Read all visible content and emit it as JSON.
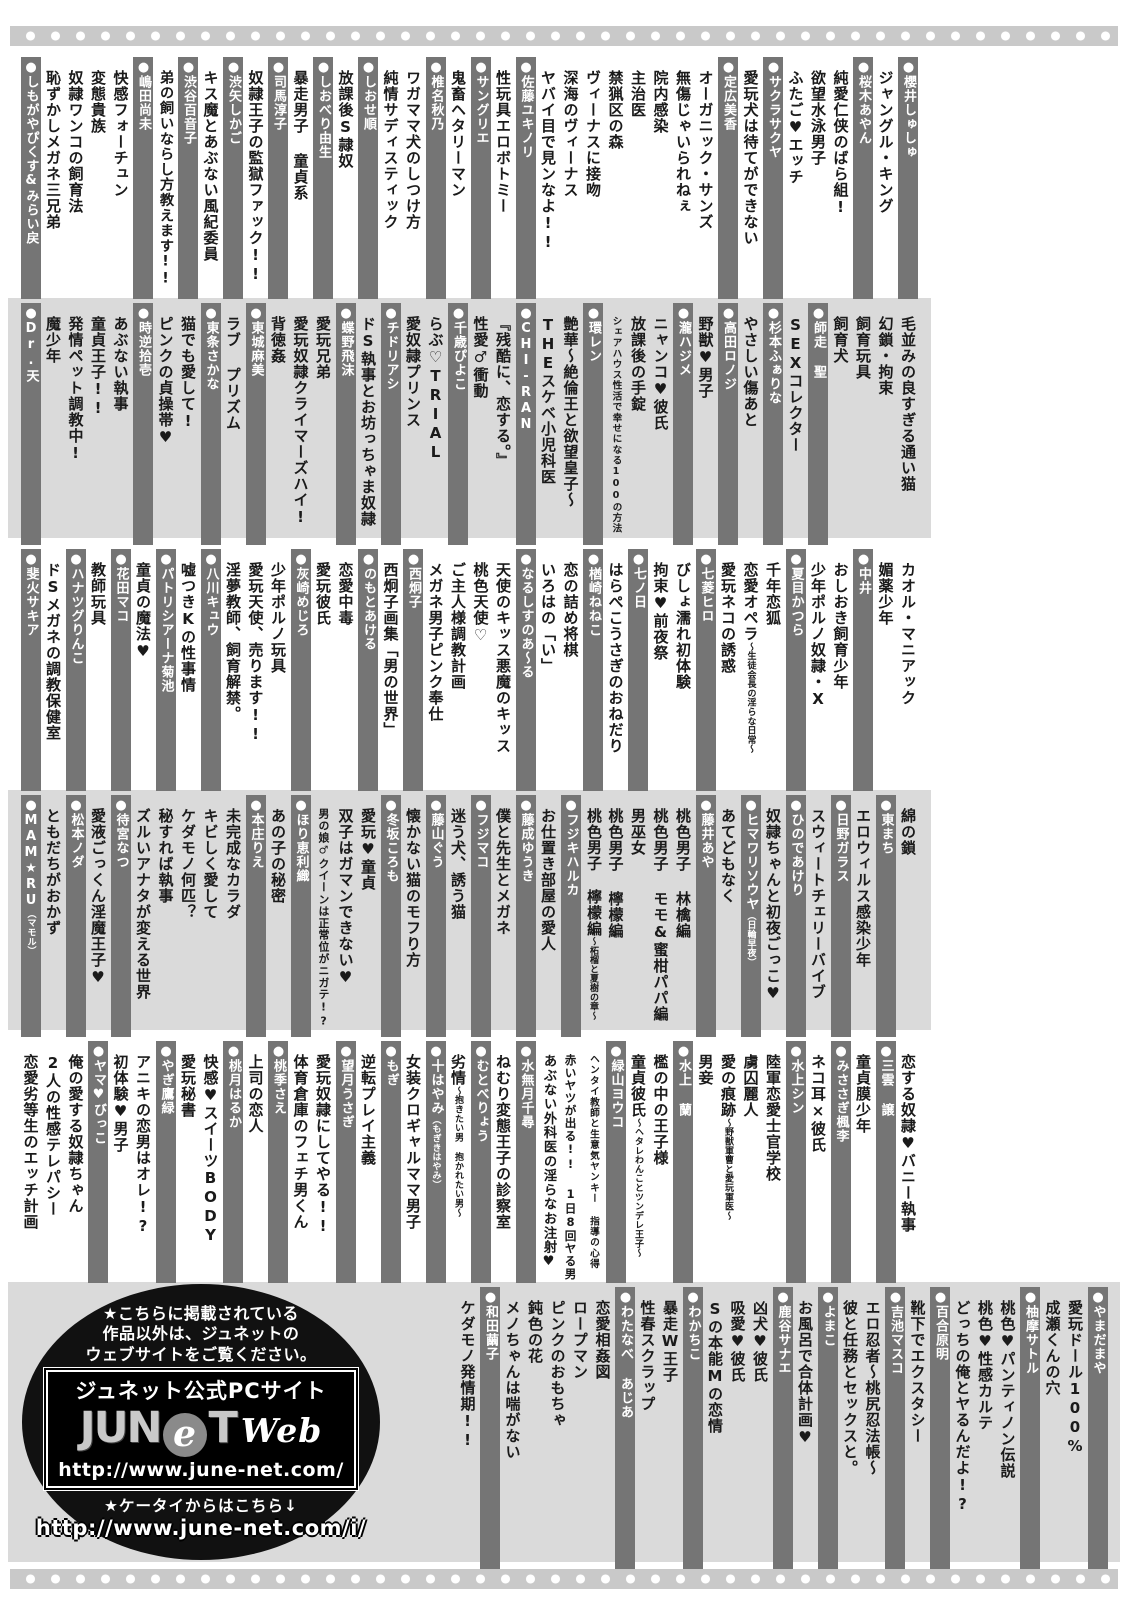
{
  "theme": {
    "band_gray": "#dadada",
    "bar_gray": "#757575",
    "dots_gray": "#c9c9c9",
    "promo_black": "#111111",
    "text_black": "#1a1a1a"
  },
  "bands": [
    {
      "bg": "white",
      "columns": [
        {
          "type": "author",
          "text": "櫻井しゅしゅ"
        },
        {
          "type": "title",
          "text": "ジャングル・キング"
        },
        {
          "type": "author",
          "text": "桜木あやん"
        },
        {
          "type": "title",
          "text": "純愛仁侠のばら組!"
        },
        {
          "type": "title",
          "text": "欲望水泳男子"
        },
        {
          "type": "title",
          "text": "ふたご♥エッチ"
        },
        {
          "type": "author",
          "text": "サクラサクヤ"
        },
        {
          "type": "title",
          "text": "愛玩犬は待てができない"
        },
        {
          "type": "author",
          "text": "定広美香"
        },
        {
          "type": "title",
          "text": "オーガニック・サンズ"
        },
        {
          "type": "title",
          "text": "無傷じゃいられねぇ"
        },
        {
          "type": "title",
          "text": "院内感染"
        },
        {
          "type": "title",
          "text": "主治医"
        },
        {
          "type": "title",
          "text": "禁猟区の森"
        },
        {
          "type": "title",
          "text": "ヴィーナスに接吻"
        },
        {
          "type": "title",
          "text": "深海のヴィーナス"
        },
        {
          "type": "title",
          "text": "ヤバイ目で見ンなよ!!"
        },
        {
          "type": "author",
          "text": "佐藤ユキノリ"
        },
        {
          "type": "title",
          "text": "性玩具エロボトミー"
        },
        {
          "type": "author",
          "text": "サングリエ"
        },
        {
          "type": "title",
          "text": "鬼畜ヘタリーマン"
        },
        {
          "type": "author",
          "text": "椎名秋乃"
        },
        {
          "type": "title",
          "text": "ワガママ犬のしつけ方"
        },
        {
          "type": "title",
          "text": "純情サディスティック"
        },
        {
          "type": "author",
          "text": "しおせ順"
        },
        {
          "type": "title",
          "text": "放課後S隷奴"
        },
        {
          "type": "author",
          "text": "しおべり由生"
        },
        {
          "type": "title",
          "text": "暴走男子 童貞系"
        },
        {
          "type": "author",
          "text": "司馬淳子"
        },
        {
          "type": "title",
          "text": "奴隷王子の監獄ファック!!"
        },
        {
          "type": "author",
          "text": "渋矢しかご"
        },
        {
          "type": "title",
          "text": "キス魔とあぶない風紀委員"
        },
        {
          "type": "author",
          "text": "渋谷百音子"
        },
        {
          "type": "title",
          "text": "弟の飼いならし方教えます!!"
        },
        {
          "type": "author",
          "text": "嶋田尚未"
        },
        {
          "type": "title",
          "text": "快感フォーチュン"
        },
        {
          "type": "title",
          "text": "変態貴族"
        },
        {
          "type": "title",
          "text": "奴隷ワンコの飼育法"
        },
        {
          "type": "title",
          "text": "恥ずかしメガネ三兄弟"
        },
        {
          "type": "author",
          "text": "しもがやぴくす&みらい戻"
        }
      ]
    },
    {
      "bg": "gray",
      "columns": [
        {
          "type": "title",
          "text": "毛並みの良すぎる通い猫"
        },
        {
          "type": "title",
          "text": "幻鎖・拘束"
        },
        {
          "type": "title",
          "text": "飼育玩具"
        },
        {
          "type": "title",
          "text": "飼育犬"
        },
        {
          "type": "author",
          "text": "師走 聖"
        },
        {
          "type": "title",
          "text": "SEXコレクター"
        },
        {
          "type": "author",
          "text": "杉本ふぁりな"
        },
        {
          "type": "title",
          "text": "やさしい傷あと"
        },
        {
          "type": "author",
          "text": "高田ロノジ"
        },
        {
          "type": "title",
          "text": "野獣♥男子"
        },
        {
          "type": "author",
          "text": "瀧ハジメ"
        },
        {
          "type": "title",
          "text": "ニャンコ♥彼氏"
        },
        {
          "type": "title",
          "text": "放課後の手錠"
        },
        {
          "type": "title",
          "text": "シェアハウス性活で幸せになる100の方法"
        },
        {
          "type": "author",
          "text": "環レン"
        },
        {
          "type": "title",
          "text": "艶華〜絶倫王と欲望皇子〜"
        },
        {
          "type": "title",
          "text": "THEスケベ小児科医"
        },
        {
          "type": "author",
          "text": "CHI-RAN"
        },
        {
          "type": "title",
          "text": "『残酷に、恋する。』"
        },
        {
          "type": "title",
          "text": "性愛♂衝動"
        },
        {
          "type": "author",
          "text": "千歳ぴよこ"
        },
        {
          "type": "title",
          "text": "らぶ♡TRIAL"
        },
        {
          "type": "title",
          "text": "愛奴隷プリンス"
        },
        {
          "type": "author",
          "text": "チドリアシ"
        },
        {
          "type": "title",
          "text": "ドS執事とお坊っちゃま奴隷"
        },
        {
          "type": "author",
          "text": "蝶野飛沫"
        },
        {
          "type": "title",
          "text": "愛玩兄弟"
        },
        {
          "type": "title",
          "text": "愛玩奴隷クライマーズハイ!"
        },
        {
          "type": "title",
          "text": "背徳姦"
        },
        {
          "type": "author",
          "text": "東城麻美"
        },
        {
          "type": "title",
          "text": "ラブ プリズム"
        },
        {
          "type": "author",
          "text": "東条さかな"
        },
        {
          "type": "title",
          "text": "猫でも愛して!"
        },
        {
          "type": "title",
          "text": "ピンクの貞操帯♥"
        },
        {
          "type": "author",
          "text": "時逆拾壱"
        },
        {
          "type": "title",
          "text": "あぶない執事"
        },
        {
          "type": "title",
          "text": "童貞王子!!"
        },
        {
          "type": "title",
          "text": "発情ペット調教中!"
        },
        {
          "type": "title",
          "text": "魔少年"
        },
        {
          "type": "author",
          "text": "Dr.天"
        }
      ]
    },
    {
      "bg": "white",
      "columns": [
        {
          "type": "title",
          "text": "カオル・マニアック"
        },
        {
          "type": "title",
          "text": "媚薬少年"
        },
        {
          "type": "author",
          "text": "中井"
        },
        {
          "type": "title",
          "text": "おしおき飼育少年"
        },
        {
          "type": "title",
          "text": "少年ポルノ奴隷・X"
        },
        {
          "type": "author",
          "text": "夏目かつら"
        },
        {
          "type": "title",
          "text": "千年恋狐"
        },
        {
          "type": "title",
          "text": "恋愛オペラ",
          "small": "〜生徒会長の淫らな日常〜"
        },
        {
          "type": "title",
          "text": "愛玩ネコの誘惑"
        },
        {
          "type": "author",
          "text": "七菱ヒロ"
        },
        {
          "type": "title",
          "text": "びしょ濡れ初体験"
        },
        {
          "type": "title",
          "text": "拘束♥前夜祭"
        },
        {
          "type": "author",
          "text": "七ノ日"
        },
        {
          "type": "title",
          "text": "はらぺこうさぎのおねだり"
        },
        {
          "type": "author",
          "text": "楢崎ねねこ"
        },
        {
          "type": "title",
          "text": "恋の詰め将棋"
        },
        {
          "type": "title",
          "text": "いろはの「い」"
        },
        {
          "type": "author",
          "text": "なるしすのあ〜る"
        },
        {
          "type": "title",
          "text": "天使のキッス悪魔のキッス"
        },
        {
          "type": "title",
          "text": "桃色天使♡"
        },
        {
          "type": "title",
          "text": "ご主人様調教計画"
        },
        {
          "type": "title",
          "text": "メガネ男子ピンク奉仕"
        },
        {
          "type": "author",
          "text": "西炯子"
        },
        {
          "type": "title",
          "text": "西炯子画集「男の世界」"
        },
        {
          "type": "author",
          "text": "のもとあける"
        },
        {
          "type": "title",
          "text": "恋愛中毒"
        },
        {
          "type": "title",
          "text": "愛玩彼氏"
        },
        {
          "type": "author",
          "text": "灰崎めじろ"
        },
        {
          "type": "title",
          "text": "少年ポルノ玩具"
        },
        {
          "type": "title",
          "text": "愛玩天使、売ります!!"
        },
        {
          "type": "title",
          "text": "淫夢教師、飼育解禁。"
        },
        {
          "type": "author",
          "text": "八川キュウ"
        },
        {
          "type": "title",
          "text": "嘘つきKの性事情"
        },
        {
          "type": "author",
          "text": "パトリシアーナ菊池"
        },
        {
          "type": "title",
          "text": "童貞の魔法♥"
        },
        {
          "type": "author",
          "text": "花田マコ"
        },
        {
          "type": "title",
          "text": "教師玩具"
        },
        {
          "type": "author",
          "text": "ハナツグりんこ"
        },
        {
          "type": "title",
          "text": "ドSメガネの調教保健室"
        },
        {
          "type": "author",
          "text": "斐火サキア"
        }
      ]
    },
    {
      "bg": "gray",
      "columns": [
        {
          "type": "title",
          "text": "綿の鎖"
        },
        {
          "type": "author",
          "text": "東まち"
        },
        {
          "type": "title",
          "text": "エロウィルス感染少年"
        },
        {
          "type": "author",
          "text": "日野ガラス"
        },
        {
          "type": "title",
          "text": "スウィートチェリーバイブ"
        },
        {
          "type": "author",
          "text": "ひのであけり"
        },
        {
          "type": "title",
          "text": "奴隷ちゃんと初夜ごっこ♥"
        },
        {
          "type": "author",
          "text": "ヒマワリソウヤ",
          "small": "（日輪早夜）"
        },
        {
          "type": "title",
          "text": "あてどもなく"
        },
        {
          "type": "author",
          "text": "藤井あや"
        },
        {
          "type": "title",
          "text": "桃色男子 林檎編"
        },
        {
          "type": "title",
          "text": "桃色男子 モモ&蜜柑パパ編"
        },
        {
          "type": "title",
          "text": "男巫女"
        },
        {
          "type": "title",
          "text": "桃色男子 檸檬編"
        },
        {
          "type": "title",
          "text": "桃色男子 檸檬編",
          "small": "〜柘榴と夏樹の章〜"
        },
        {
          "type": "author",
          "text": "フジキハルカ"
        },
        {
          "type": "title",
          "text": "お仕置き部屋の愛人"
        },
        {
          "type": "author",
          "text": "藤成ゆうき"
        },
        {
          "type": "title",
          "text": "僕と先生とメガネ"
        },
        {
          "type": "author",
          "text": "フジマコ"
        },
        {
          "type": "title",
          "text": "迷う犬、誘う猫"
        },
        {
          "type": "author",
          "text": "藤山ぐう"
        },
        {
          "type": "title",
          "text": "懐かない猫のモフり方"
        },
        {
          "type": "author",
          "text": "冬坂ころも"
        },
        {
          "type": "title",
          "text": "愛玩♥童貞"
        },
        {
          "type": "title",
          "text": "双子はガマンできない♥"
        },
        {
          "type": "title",
          "text": "男の娘♂クイーンは正常位がニガテ!?"
        },
        {
          "type": "author",
          "text": "ほり恵利織"
        },
        {
          "type": "title",
          "text": "あの子の秘密"
        },
        {
          "type": "author",
          "text": "本庄りえ"
        },
        {
          "type": "title",
          "text": "未完成なカラダ"
        },
        {
          "type": "title",
          "text": "キビしく愛して"
        },
        {
          "type": "title",
          "text": "ケダモノ何匹？"
        },
        {
          "type": "title",
          "text": "秘すれば執事"
        },
        {
          "type": "title",
          "text": "ズルいアナタが変える世界"
        },
        {
          "type": "author",
          "text": "待宮なつ"
        },
        {
          "type": "title",
          "text": "愛液ごっくん淫魔王子♥"
        },
        {
          "type": "author",
          "text": "松本ノダ"
        },
        {
          "type": "title",
          "text": "ともだちがおかず"
        },
        {
          "type": "author",
          "text": "MAM★RU",
          "small": "（マモル）"
        }
      ]
    },
    {
      "bg": "white",
      "columns": [
        {
          "type": "title",
          "text": "恋する奴隷♥バニー執事"
        },
        {
          "type": "author",
          "text": "三雲 譲"
        },
        {
          "type": "title",
          "text": "童貞膜少年"
        },
        {
          "type": "author",
          "text": "みささぎ楓李"
        },
        {
          "type": "title",
          "text": "ネコ耳×彼氏"
        },
        {
          "type": "author",
          "text": "水上シン"
        },
        {
          "type": "title",
          "text": "陸軍恋愛士官学校"
        },
        {
          "type": "title",
          "text": "虜囚麗人"
        },
        {
          "type": "title",
          "text": "愛の痕跡",
          "small": "〜野獣軍曹と愛玩軍医〜"
        },
        {
          "type": "title",
          "text": "男妾"
        },
        {
          "type": "author",
          "text": "水上 蘭"
        },
        {
          "type": "title",
          "text": "檻の中の王子様"
        },
        {
          "type": "title",
          "text": "童貞彼氏",
          "small": "〜ヘタレわんことツンデレ王子〜"
        },
        {
          "type": "author",
          "text": "緑山ヨウコ"
        },
        {
          "type": "title",
          "text": "ヘンタイ教師と生意気ヤンキー 指導の心得"
        },
        {
          "type": "title",
          "text": "赤いヤツが出る!! 1日8回ヤる男"
        },
        {
          "type": "title",
          "text": "あぶない外科医の淫らなお注射♥"
        },
        {
          "type": "author",
          "text": "水無月千尋"
        },
        {
          "type": "title",
          "text": "ねむり変態王子の診察室"
        },
        {
          "type": "author",
          "text": "むとべりょう"
        },
        {
          "type": "title",
          "text": "劣情",
          "small": "〜抱きたい男 抱かれたい男〜"
        },
        {
          "type": "author",
          "text": "十はやみ",
          "small": "（もぎきはやみ）"
        },
        {
          "type": "title",
          "text": "女装クロギャルママ男子"
        },
        {
          "type": "author",
          "text": "もぎ"
        },
        {
          "type": "title",
          "text": "逆転プレイ主義"
        },
        {
          "type": "author",
          "text": "望月うさぎ"
        },
        {
          "type": "title",
          "text": "愛玩奴隷にしてやる!!"
        },
        {
          "type": "title",
          "text": "体育倉庫のフェチ男くん"
        },
        {
          "type": "author",
          "text": "桃季さえ"
        },
        {
          "type": "title",
          "text": "上司の恋人"
        },
        {
          "type": "author",
          "text": "桃月はるか"
        },
        {
          "type": "title",
          "text": "快感♥スイーツBODY"
        },
        {
          "type": "title",
          "text": "愛玩秘書"
        },
        {
          "type": "author",
          "text": "やぎ鷹緑"
        },
        {
          "type": "title",
          "text": "アニキの恋男はオレ!?"
        },
        {
          "type": "title",
          "text": "初体験♥男子"
        },
        {
          "type": "author",
          "text": "ヤマ♥びっこ"
        },
        {
          "type": "title",
          "text": "俺の愛する奴隷ちゃん"
        },
        {
          "type": "title",
          "text": "2人の性感テレパシー"
        },
        {
          "type": "title",
          "text": "恋愛劣等生のエッチ計画"
        }
      ]
    },
    {
      "bg": "gray",
      "footer": true,
      "columns": [
        {
          "type": "author",
          "text": "やまだまや"
        },
        {
          "type": "title",
          "text": "愛玩ドール100%"
        },
        {
          "type": "title",
          "text": "成瀬くんの穴"
        },
        {
          "type": "author",
          "text": "柚摩サトル"
        },
        {
          "type": "title",
          "text": "桃色♥パンティノン伝説"
        },
        {
          "type": "title",
          "text": "桃色♥性感カルテ"
        },
        {
          "type": "title",
          "text": "どっちの俺とヤるんだよ!?"
        },
        {
          "type": "author",
          "text": "百合原明"
        },
        {
          "type": "title",
          "text": "靴下でエクスタシー"
        },
        {
          "type": "author",
          "text": "吉池マスコ"
        },
        {
          "type": "title",
          "text": "エロ忍者〜桃尻忍法帳〜"
        },
        {
          "type": "title",
          "text": "彼と任務とセックスと。"
        },
        {
          "type": "author",
          "text": "よまこ"
        },
        {
          "type": "title",
          "text": "お風呂で合体計画♥"
        },
        {
          "type": "author",
          "text": "鹿谷サナエ"
        },
        {
          "type": "title",
          "text": "凶犬♥彼氏"
        },
        {
          "type": "title",
          "text": "吸愛♥彼氏"
        },
        {
          "type": "title",
          "text": "Sの本能Mの恋情"
        },
        {
          "type": "author",
          "text": "わかちこ"
        },
        {
          "type": "title",
          "text": "暴走W王子"
        },
        {
          "type": "title",
          "text": "性春スクラップ"
        },
        {
          "type": "author",
          "text": "わたなべ あじあ"
        },
        {
          "type": "title",
          "text": "恋愛相姦図"
        },
        {
          "type": "title",
          "text": "ロープマン"
        },
        {
          "type": "title",
          "text": "ピンクのおもちゃ"
        },
        {
          "type": "title",
          "text": "鈍色の花"
        },
        {
          "type": "title",
          "text": "メノちゃんは喘がない"
        },
        {
          "type": "author",
          "text": "和田繭子"
        },
        {
          "type": "title",
          "text": "ケダモノ発情期!!"
        }
      ]
    }
  ],
  "footer_promo": {
    "note_lines": [
      "★こちらに掲載されている",
      "作品以外は、ジュネットの",
      "ウェブサイトをご覧ください。"
    ],
    "site_label": "ジュネット公式PCサイト",
    "logo_main": "JUN",
    "logo_e": "e",
    "logo_t": "T",
    "logo_web": "Web",
    "pc_url": "http://www.june-net.com/",
    "mobile_label": "★ケータイからはこちら↓",
    "mobile_url": "http://www.june-net.com/i/"
  }
}
